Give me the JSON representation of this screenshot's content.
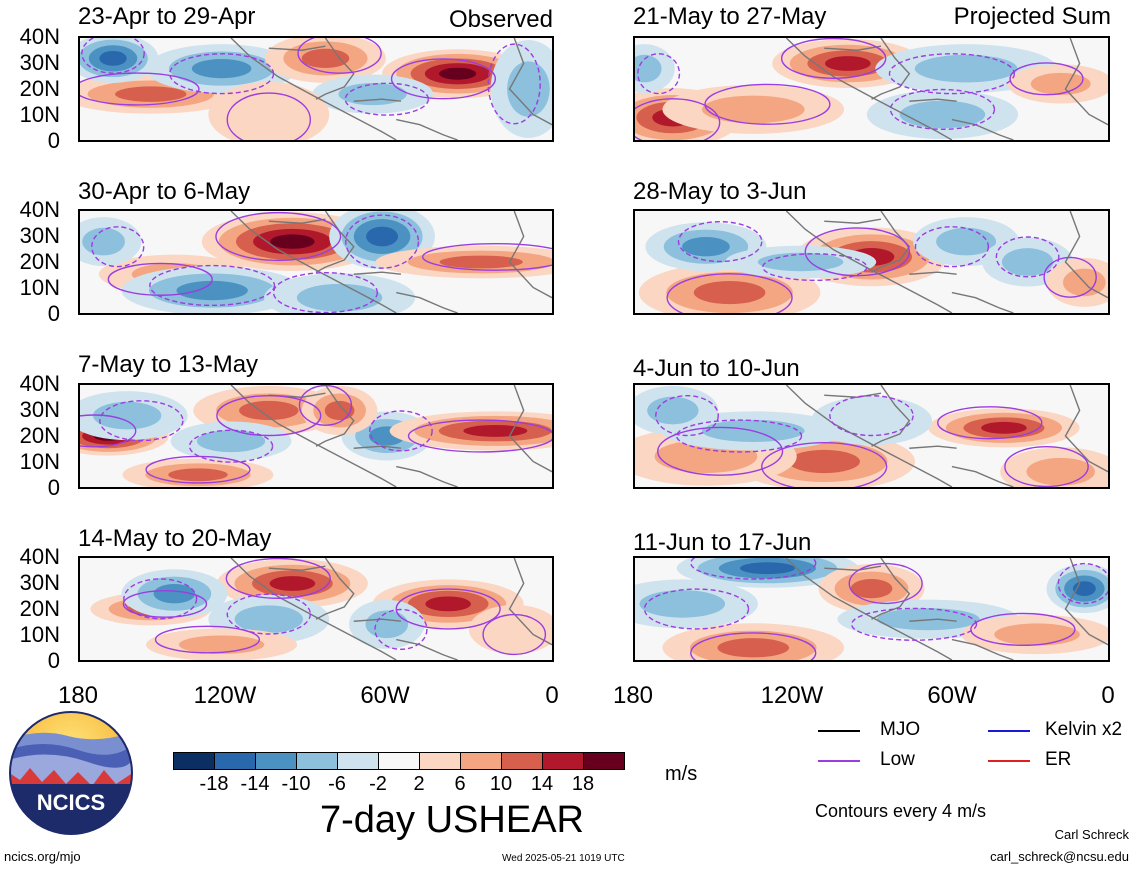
{
  "header": {
    "left_label": "Observed",
    "right_label": "Projected Sum"
  },
  "panels": [
    {
      "title": "23-Apr to 29-Apr",
      "blobs": [
        [
          0.15,
          0.55,
          0.12,
          0.12,
          10
        ],
        [
          0.3,
          0.3,
          0.1,
          0.15,
          -10
        ],
        [
          0.52,
          0.2,
          0.08,
          0.15,
          10
        ],
        [
          0.8,
          0.35,
          0.1,
          0.15,
          18
        ],
        [
          0.07,
          0.2,
          0.06,
          0.15,
          -14
        ],
        [
          0.62,
          0.55,
          0.08,
          0.12,
          -6
        ],
        [
          0.95,
          0.5,
          0.05,
          0.3,
          -6
        ],
        [
          0.4,
          0.75,
          0.08,
          0.2,
          2
        ]
      ]
    },
    {
      "title": "30-Apr to 6-May",
      "blobs": [
        [
          0.45,
          0.3,
          0.12,
          0.18,
          18
        ],
        [
          0.64,
          0.25,
          0.07,
          0.2,
          -14
        ],
        [
          0.85,
          0.5,
          0.14,
          0.1,
          10
        ],
        [
          0.2,
          0.62,
          0.1,
          0.12,
          6
        ],
        [
          0.28,
          0.78,
          0.12,
          0.15,
          -10
        ],
        [
          0.05,
          0.3,
          0.05,
          0.15,
          -6
        ],
        [
          0.55,
          0.85,
          0.1,
          0.15,
          -6
        ]
      ]
    },
    {
      "title": "7-May to 13-May",
      "blobs": [
        [
          0.06,
          0.5,
          0.08,
          0.12,
          18
        ],
        [
          0.4,
          0.25,
          0.1,
          0.15,
          10
        ],
        [
          0.65,
          0.5,
          0.06,
          0.15,
          -10
        ],
        [
          0.88,
          0.45,
          0.14,
          0.12,
          14
        ],
        [
          0.25,
          0.88,
          0.1,
          0.1,
          10
        ],
        [
          0.1,
          0.3,
          0.08,
          0.15,
          -6
        ],
        [
          0.55,
          0.25,
          0.05,
          0.15,
          10
        ],
        [
          0.32,
          0.55,
          0.08,
          0.12,
          -6
        ]
      ]
    },
    {
      "title": "14-May to 20-May",
      "blobs": [
        [
          0.45,
          0.25,
          0.1,
          0.15,
          14
        ],
        [
          0.78,
          0.45,
          0.1,
          0.15,
          14
        ],
        [
          0.15,
          0.5,
          0.08,
          0.1,
          10
        ],
        [
          0.2,
          0.35,
          0.07,
          0.15,
          -10
        ],
        [
          0.4,
          0.6,
          0.08,
          0.15,
          -6
        ],
        [
          0.65,
          0.65,
          0.05,
          0.15,
          -6
        ],
        [
          0.3,
          0.85,
          0.1,
          0.1,
          6
        ],
        [
          0.92,
          0.7,
          0.06,
          0.15,
          2
        ]
      ]
    },
    {
      "title": "21-May to 27-May",
      "blobs": [
        [
          0.45,
          0.25,
          0.1,
          0.15,
          14
        ],
        [
          0.08,
          0.78,
          0.09,
          0.18,
          14
        ],
        [
          0.25,
          0.7,
          0.12,
          0.15,
          6
        ],
        [
          0.7,
          0.3,
          0.12,
          0.15,
          -6
        ],
        [
          0.65,
          0.75,
          0.1,
          0.15,
          -6
        ],
        [
          0.02,
          0.3,
          0.04,
          0.15,
          -6
        ],
        [
          0.9,
          0.45,
          0.07,
          0.12,
          6
        ]
      ]
    },
    {
      "title": "28-May to 3-Jun",
      "blobs": [
        [
          0.5,
          0.45,
          0.1,
          0.18,
          14
        ],
        [
          0.2,
          0.8,
          0.12,
          0.18,
          10
        ],
        [
          0.15,
          0.35,
          0.08,
          0.15,
          -10
        ],
        [
          0.7,
          0.3,
          0.07,
          0.15,
          -6
        ],
        [
          0.83,
          0.5,
          0.06,
          0.15,
          -6
        ],
        [
          0.35,
          0.5,
          0.1,
          0.1,
          -6
        ],
        [
          0.95,
          0.7,
          0.05,
          0.15,
          6
        ]
      ]
    },
    {
      "title": "4-Jun to 10-Jun",
      "blobs": [
        [
          0.78,
          0.42,
          0.1,
          0.12,
          14
        ],
        [
          0.4,
          0.75,
          0.12,
          0.18,
          10
        ],
        [
          0.15,
          0.7,
          0.12,
          0.18,
          6
        ],
        [
          0.25,
          0.45,
          0.12,
          0.12,
          -6
        ],
        [
          0.5,
          0.35,
          0.08,
          0.15,
          -2
        ],
        [
          0.08,
          0.25,
          0.06,
          0.15,
          -6
        ],
        [
          0.9,
          0.85,
          0.08,
          0.15,
          6
        ]
      ]
    },
    {
      "title": "11-Jun to 17-Jun",
      "blobs": [
        [
          0.28,
          0.1,
          0.12,
          0.12,
          -14
        ],
        [
          0.25,
          0.88,
          0.12,
          0.15,
          10
        ],
        [
          0.5,
          0.3,
          0.07,
          0.15,
          10
        ],
        [
          0.62,
          0.6,
          0.12,
          0.12,
          -6
        ],
        [
          0.95,
          0.3,
          0.05,
          0.15,
          -14
        ],
        [
          0.1,
          0.45,
          0.1,
          0.15,
          -6
        ],
        [
          0.85,
          0.75,
          0.1,
          0.12,
          6
        ]
      ]
    }
  ],
  "axes": {
    "y_ticks": [
      "40N",
      "30N",
      "20N",
      "10N",
      "0"
    ],
    "x_ticks": [
      "180",
      "120W",
      "60W",
      "0"
    ]
  },
  "colorbar": {
    "tick_labels": [
      "-18",
      "-14",
      "-10",
      "-6",
      "-2",
      "2",
      "6",
      "10",
      "14",
      "18"
    ],
    "colors": [
      "#0b2f62",
      "#2a68ae",
      "#4b92c3",
      "#8cc0dc",
      "#cfe3ef",
      "#f7f7f7",
      "#fbd6c2",
      "#f4a582",
      "#d6604d",
      "#b2182b",
      "#67001f"
    ],
    "units": "m/s",
    "title": "7-day USHEAR"
  },
  "legend": {
    "items": [
      {
        "label": "MJO",
        "color": "#000000"
      },
      {
        "label": "Kelvin x2",
        "color": "#1a1ad6"
      },
      {
        "label": "Low",
        "color": "#9b3de0"
      },
      {
        "label": "ER",
        "color": "#e02020"
      }
    ],
    "contour_note": "Contours every 4 m/s"
  },
  "logo": {
    "text": "NCICS"
  },
  "footer": {
    "url": "ncics.org/mjo",
    "timestamp": "Wed 2025-05-21 1019 UTC",
    "author": "Carl Schreck",
    "email": "carl_schreck@ncsu.edu"
  }
}
